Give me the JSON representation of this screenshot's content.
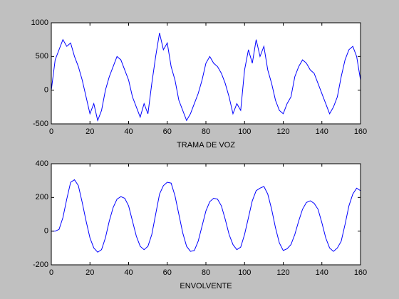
{
  "chart_data": [
    {
      "type": "line",
      "xlabel": "TRAMA DE VOZ",
      "x": [
        0,
        2,
        4,
        6,
        8,
        10,
        12,
        14,
        16,
        18,
        20,
        22,
        24,
        26,
        28,
        30,
        32,
        34,
        36,
        38,
        40,
        42,
        44,
        46,
        48,
        50,
        52,
        54,
        56,
        58,
        60,
        62,
        64,
        66,
        68,
        70,
        72,
        74,
        76,
        78,
        80,
        82,
        84,
        86,
        88,
        90,
        92,
        94,
        96,
        98,
        100,
        102,
        104,
        106,
        108,
        110,
        112,
        114,
        116,
        118,
        120,
        122,
        124,
        126,
        128,
        130,
        132,
        134,
        136,
        138,
        140,
        142,
        144,
        146,
        148,
        150,
        152,
        154,
        156,
        158,
        160
      ],
      "series": [
        {
          "color": "#0000ff",
          "values": [
            0,
            450,
            600,
            750,
            650,
            700,
            500,
            350,
            150,
            -100,
            -350,
            -200,
            -450,
            -300,
            0,
            200,
            350,
            500,
            450,
            300,
            150,
            -100,
            -250,
            -400,
            -200,
            -350,
            100,
            500,
            850,
            600,
            700,
            350,
            150,
            -150,
            -300,
            -450,
            -350,
            -200,
            -50,
            150,
            400,
            500,
            400,
            350,
            250,
            100,
            -100,
            -350,
            -200,
            -300,
            300,
            600,
            400,
            750,
            500,
            650,
            300,
            100,
            -150,
            -300,
            -350,
            -200,
            -100,
            200,
            350,
            450,
            400,
            300,
            250,
            100,
            -50,
            -200,
            -350,
            -250,
            -100,
            200,
            450,
            600,
            650,
            500,
            150
          ]
        }
      ],
      "xlim": [
        0,
        160
      ],
      "xticks": [
        0,
        20,
        40,
        60,
        80,
        100,
        120,
        140,
        160
      ],
      "ylim": [
        -500,
        1000
      ],
      "yticks": [
        -500,
        0,
        500,
        1000
      ]
    },
    {
      "type": "line",
      "xlabel": "ENVOLVENTE",
      "x": [
        0,
        2,
        4,
        6,
        8,
        10,
        12,
        14,
        16,
        18,
        20,
        22,
        24,
        26,
        28,
        30,
        32,
        34,
        36,
        38,
        40,
        42,
        44,
        46,
        48,
        50,
        52,
        54,
        56,
        58,
        60,
        62,
        64,
        66,
        68,
        70,
        72,
        74,
        76,
        78,
        80,
        82,
        84,
        86,
        88,
        90,
        92,
        94,
        96,
        98,
        100,
        102,
        104,
        106,
        108,
        110,
        112,
        114,
        116,
        118,
        120,
        122,
        124,
        126,
        128,
        130,
        132,
        134,
        136,
        138,
        140,
        142,
        144,
        146,
        148,
        150,
        152,
        154,
        156,
        158,
        160
      ],
      "series": [
        {
          "color": "#0000ff",
          "values": [
            0,
            0,
            10,
            80,
            190,
            290,
            305,
            270,
            170,
            60,
            -40,
            -100,
            -125,
            -110,
            -40,
            60,
            140,
            190,
            205,
            195,
            150,
            60,
            -30,
            -90,
            -110,
            -90,
            -20,
            100,
            220,
            270,
            290,
            285,
            210,
            100,
            -10,
            -90,
            -120,
            -115,
            -60,
            30,
            120,
            175,
            195,
            190,
            150,
            70,
            -20,
            -80,
            -110,
            -95,
            -20,
            80,
            180,
            240,
            255,
            265,
            220,
            130,
            20,
            -70,
            -115,
            -105,
            -80,
            -20,
            60,
            130,
            170,
            180,
            165,
            130,
            50,
            -40,
            -100,
            -120,
            -100,
            -60,
            40,
            150,
            220,
            255,
            240
          ]
        }
      ],
      "xlim": [
        0,
        160
      ],
      "xticks": [
        0,
        20,
        40,
        60,
        80,
        100,
        120,
        140,
        160
      ],
      "ylim": [
        -200,
        400
      ],
      "yticks": [
        -200,
        0,
        200,
        400
      ]
    }
  ]
}
